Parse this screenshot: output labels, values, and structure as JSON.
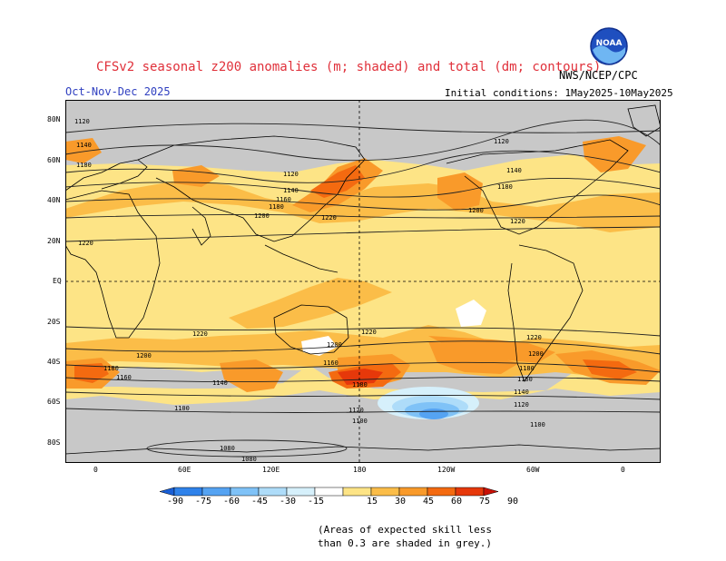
{
  "header": {
    "title": "CFSv2 seasonal z200 anomalies (m; shaded) and total (dm; contours)",
    "season": "Oct-Nov-Dec 2025",
    "initial_conditions": "Initial conditions: 1May2025-10May2025",
    "agency": "NWS/NCEP/CPC",
    "logo_text": "NOAA"
  },
  "map": {
    "lat_labels": [
      "80N",
      "60N",
      "40N",
      "20N",
      "EQ",
      "20S",
      "40S",
      "60S",
      "80S"
    ],
    "lon_labels": [
      "0",
      "60E",
      "120E",
      "180",
      "120W",
      "60W",
      "0"
    ],
    "contour_labels": [
      "1120",
      "1140",
      "1160",
      "1180",
      "1200",
      "1220",
      "1100",
      "1080"
    ],
    "skill_mask_color": "#c8c8c8"
  },
  "colorbar": {
    "ticks": [
      "-90",
      "-75",
      "-60",
      "-45",
      "-30",
      "-15",
      "15",
      "30",
      "45",
      "60",
      "75",
      "90"
    ],
    "colors": [
      "#1a5fd6",
      "#2f82ea",
      "#55a3f2",
      "#7fc2f7",
      "#aedcf9",
      "#d6f0fb",
      "#ffffff",
      "#fde486",
      "#fbbd48",
      "#f99a2a",
      "#f46a10",
      "#e6380a",
      "#c81006"
    ]
  },
  "notes": {
    "line1": "(Areas of expected skill less",
    "line2": "than 0.3 are shaded in grey.)"
  }
}
